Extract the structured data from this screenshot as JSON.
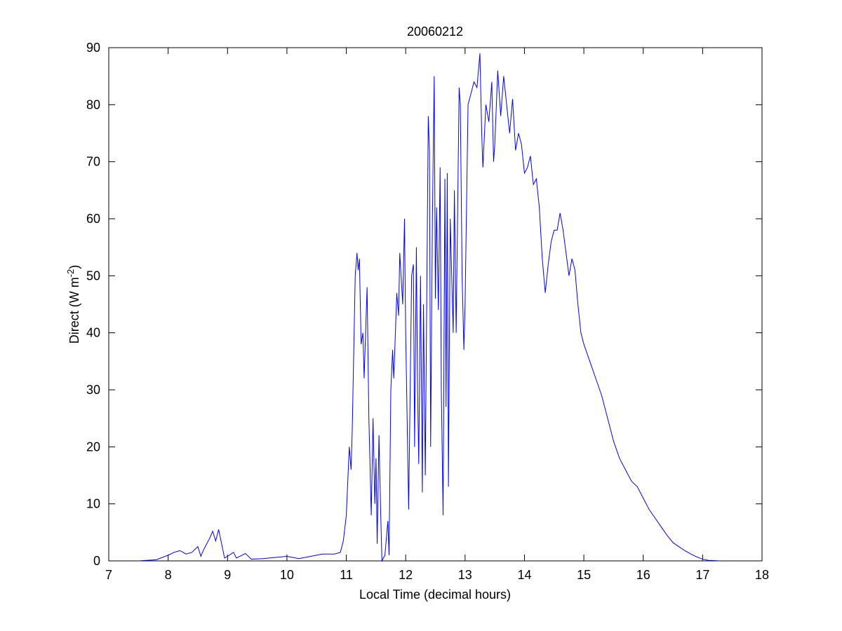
{
  "chart_data": {
    "type": "line",
    "title": "20060212",
    "xlabel": "Local Time (decimal hours)",
    "ylabel": {
      "text": "Direct (W m",
      "superscript": "-2",
      "suffix": ")"
    },
    "xlim": [
      7,
      18
    ],
    "xticks": [
      7,
      8,
      9,
      10,
      11,
      12,
      13,
      14,
      15,
      16,
      17,
      18
    ],
    "ylim": [
      0,
      90
    ],
    "yticks": [
      0,
      10,
      20,
      30,
      40,
      50,
      60,
      70,
      80,
      90
    ],
    "grid": false,
    "series": [
      {
        "color": "#0000ff",
        "x": [
          7.5,
          7.8,
          8.0,
          8.1,
          8.2,
          8.3,
          8.4,
          8.5,
          8.55,
          8.6,
          8.7,
          8.75,
          8.8,
          8.85,
          8.9,
          8.95,
          9.0,
          9.1,
          9.15,
          9.3,
          9.4,
          9.6,
          9.8,
          10.0,
          10.2,
          10.4,
          10.6,
          10.8,
          10.9,
          10.95,
          11.0,
          11.05,
          11.08,
          11.1,
          11.15,
          11.18,
          11.2,
          11.22,
          11.25,
          11.28,
          11.3,
          11.35,
          11.38,
          11.42,
          11.45,
          11.48,
          11.5,
          11.52,
          11.55,
          11.58,
          11.6,
          11.65,
          11.7,
          11.72,
          11.75,
          11.78,
          11.8,
          11.85,
          11.88,
          11.9,
          11.95,
          11.98,
          12.0,
          12.05,
          12.1,
          12.13,
          12.15,
          12.18,
          12.2,
          12.22,
          12.25,
          12.28,
          12.3,
          12.33,
          12.38,
          12.4,
          12.42,
          12.45,
          12.48,
          12.5,
          12.52,
          12.55,
          12.58,
          12.6,
          12.63,
          12.66,
          12.68,
          12.7,
          12.72,
          12.75,
          12.8,
          12.82,
          12.85,
          12.9,
          12.92,
          12.95,
          12.98,
          13.0,
          13.05,
          13.1,
          13.15,
          13.2,
          13.25,
          13.28,
          13.3,
          13.35,
          13.4,
          13.45,
          13.48,
          13.5,
          13.55,
          13.6,
          13.65,
          13.7,
          13.75,
          13.8,
          13.85,
          13.9,
          13.95,
          14.0,
          14.05,
          14.1,
          14.15,
          14.2,
          14.25,
          14.3,
          14.35,
          14.4,
          14.45,
          14.5,
          14.55,
          14.6,
          14.65,
          14.7,
          14.75,
          14.8,
          14.85,
          14.9,
          14.95,
          15.0,
          15.1,
          15.2,
          15.3,
          15.4,
          15.5,
          15.6,
          15.7,
          15.8,
          15.9,
          16.0,
          16.1,
          16.2,
          16.3,
          16.4,
          16.5,
          16.6,
          16.7,
          16.8,
          16.9,
          17.0,
          17.1,
          17.2,
          17.3
        ],
        "values": [
          0,
          0.2,
          1,
          1.5,
          1.8,
          1.2,
          1.5,
          2.5,
          0.8,
          2,
          4,
          5.2,
          3.5,
          5.5,
          3,
          0.5,
          0.8,
          1.5,
          0.5,
          1.3,
          0.3,
          0.4,
          0.6,
          0.8,
          0.4,
          0.8,
          1.2,
          1.2,
          1.5,
          3.5,
          8,
          20,
          16,
          23,
          50,
          54,
          51,
          53,
          38,
          40,
          32,
          48,
          25,
          8,
          25,
          10,
          18,
          3,
          22,
          8,
          0,
          1,
          7,
          1,
          30,
          37,
          32,
          47,
          43,
          54,
          45,
          60,
          40,
          9,
          50,
          52,
          20,
          55,
          30,
          17,
          50,
          12,
          45,
          15,
          78,
          72,
          20,
          60,
          85,
          46,
          62,
          44,
          69,
          30,
          8,
          67,
          27,
          68,
          13,
          60,
          40,
          65,
          40,
          83,
          80,
          50,
          37,
          45,
          80,
          82,
          84,
          83,
          89,
          75,
          69,
          80,
          77,
          84,
          70,
          73,
          86,
          78,
          85,
          80,
          75,
          81,
          72,
          75,
          73,
          68,
          69,
          71,
          66,
          67,
          62,
          53,
          47,
          52,
          56,
          58,
          58,
          61,
          58,
          54,
          50,
          53,
          51,
          45,
          40,
          38,
          35,
          32,
          29,
          25,
          21,
          18,
          16,
          14,
          13,
          11,
          9,
          7.5,
          6,
          4.5,
          3.2,
          2.5,
          1.8,
          1.2,
          0.7,
          0.3,
          0.1,
          0.05,
          0
        ]
      }
    ]
  }
}
